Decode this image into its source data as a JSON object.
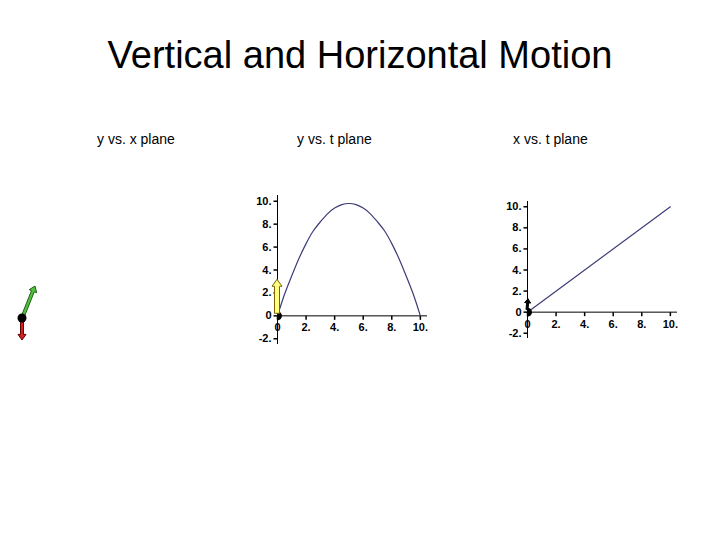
{
  "title": "Vertical and Horizontal Motion",
  "chart_data": [
    {
      "type": "vectors",
      "title": "y vs. x plane"
    },
    {
      "type": "line",
      "title": "y vs. t plane",
      "color": "#3c3c78",
      "x": [
        0,
        0.5,
        1,
        1.5,
        2,
        2.5,
        3,
        3.5,
        4,
        4.5,
        5,
        5.5,
        6,
        6.5,
        7,
        7.5,
        8,
        8.5,
        9,
        9.5,
        10
      ],
      "values": [
        0,
        1.9,
        3.5,
        5.0,
        6.3,
        7.4,
        8.2,
        8.9,
        9.4,
        9.7,
        9.8,
        9.7,
        9.4,
        8.9,
        8.2,
        7.4,
        6.3,
        5.0,
        3.5,
        1.9,
        0
      ],
      "xlim": [
        0,
        10.5
      ],
      "ylim": [
        -2.5,
        10.5
      ],
      "xticks": [
        0,
        {
          "value": 2,
          "label": "2."
        },
        {
          "value": 4,
          "label": "4."
        },
        {
          "value": 6,
          "label": "6."
        },
        {
          "value": 8,
          "label": "8."
        },
        {
          "value": 10,
          "label": "10."
        }
      ],
      "yticks": [
        {
          "value": -2,
          "label": "-2."
        },
        0,
        {
          "value": 2,
          "label": "2."
        },
        {
          "value": 4,
          "label": "4."
        },
        {
          "value": 6,
          "label": "6."
        },
        {
          "value": 8,
          "label": "8."
        },
        {
          "value": 10,
          "label": "10."
        }
      ]
    },
    {
      "type": "line",
      "title": "x vs. t plane",
      "color": "#3c3c78",
      "x": [
        0,
        10
      ],
      "values": [
        0,
        10
      ],
      "xlim": [
        0,
        10.5
      ],
      "ylim": [
        -2.5,
        10.5
      ],
      "xticks": [
        0,
        {
          "value": 2,
          "label": "2."
        },
        {
          "value": 4,
          "label": "4."
        },
        {
          "value": 6,
          "label": "6."
        },
        {
          "value": 8,
          "label": "8."
        },
        {
          "value": 10,
          "label": "10."
        }
      ],
      "yticks": [
        {
          "value": -2,
          "label": "-2."
        },
        0,
        {
          "value": 2,
          "label": "2."
        },
        {
          "value": 4,
          "label": "4."
        },
        {
          "value": 6,
          "label": "6."
        },
        {
          "value": 8,
          "label": "8."
        },
        {
          "value": 10,
          "label": "10."
        }
      ]
    }
  ]
}
